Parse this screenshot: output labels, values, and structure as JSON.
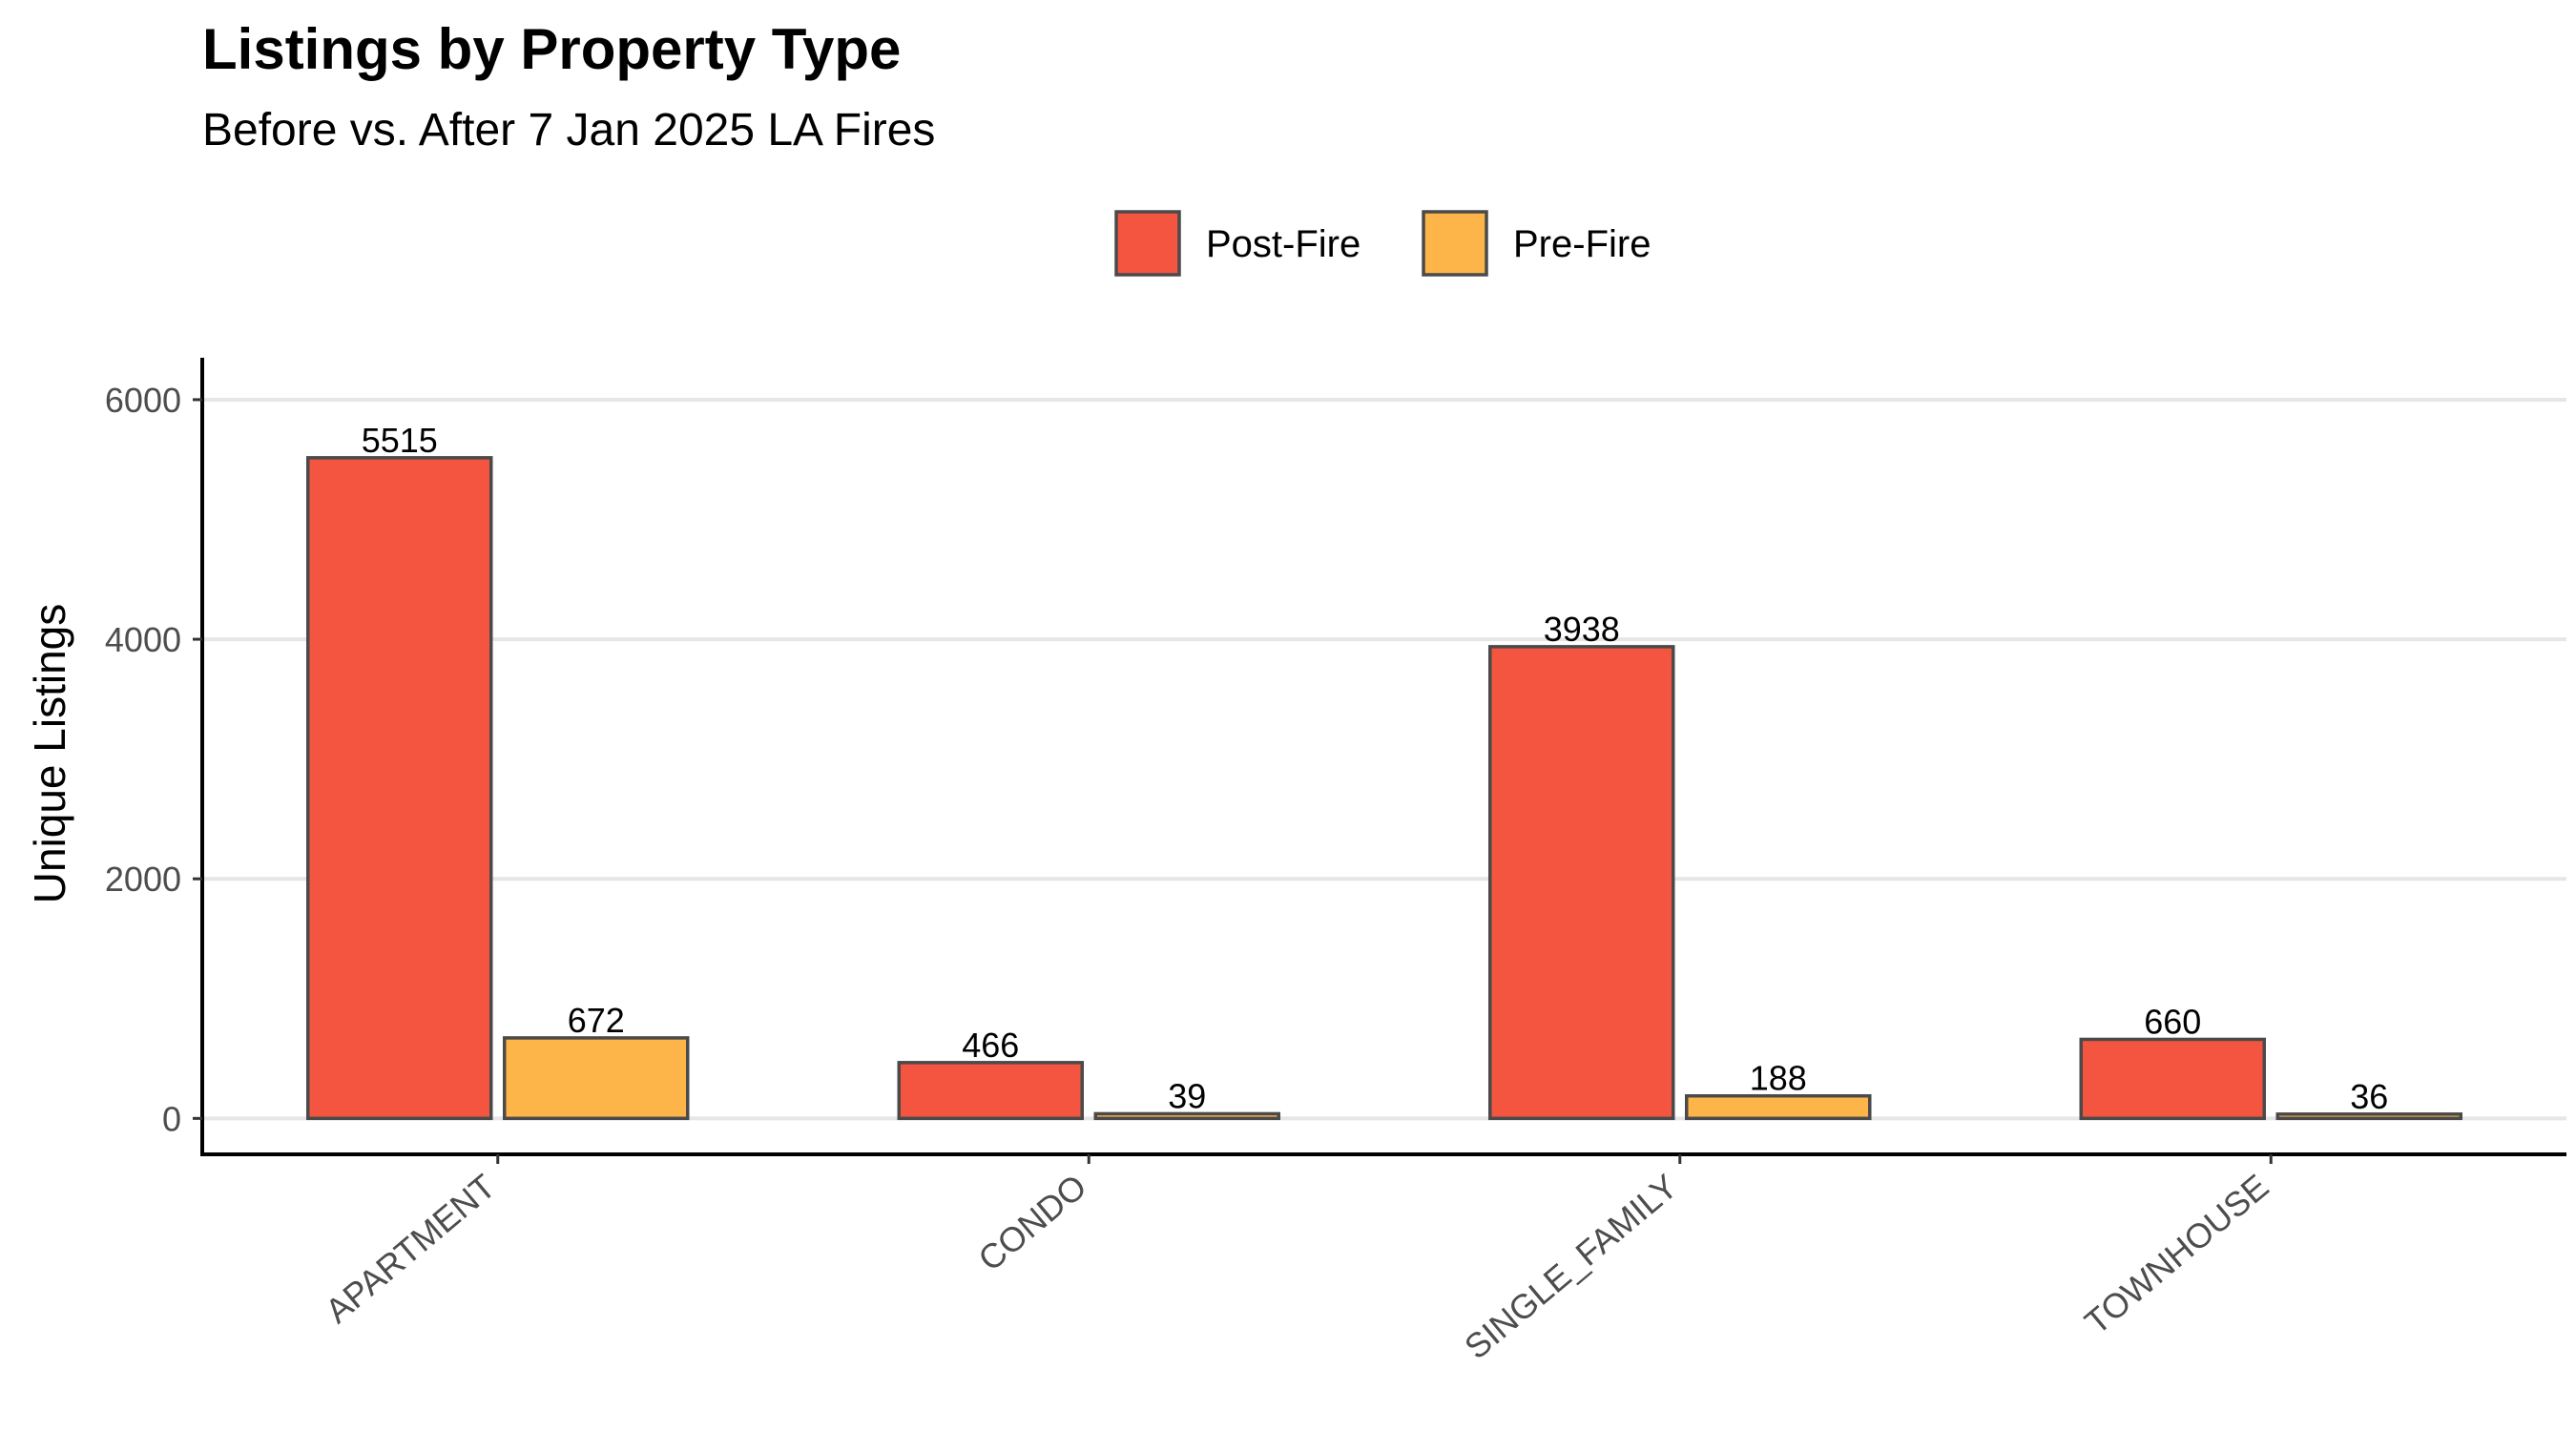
{
  "chart_data": {
    "type": "bar",
    "title": "Listings by Property Type",
    "subtitle": "Before vs. After 7 Jan 2025 LA Fires",
    "xlabel": "",
    "ylabel": "Unique Listings",
    "categories": [
      "APARTMENT",
      "CONDO",
      "SINGLE_FAMILY",
      "TOWNHOUSE"
    ],
    "series": [
      {
        "name": "Post-Fire",
        "color": "#F45540",
        "values": [
          5515,
          466,
          3938,
          660
        ]
      },
      {
        "name": "Pre-Fire",
        "color": "#FDB54A",
        "values": [
          672,
          39,
          188,
          36
        ]
      }
    ],
    "ylim": [
      -300,
      6350
    ],
    "yticks": [
      0,
      2000,
      4000,
      6000
    ],
    "grid": "horizontal major",
    "legend_position": "top",
    "bar_labels": true,
    "x_tick_rotation": -40
  }
}
